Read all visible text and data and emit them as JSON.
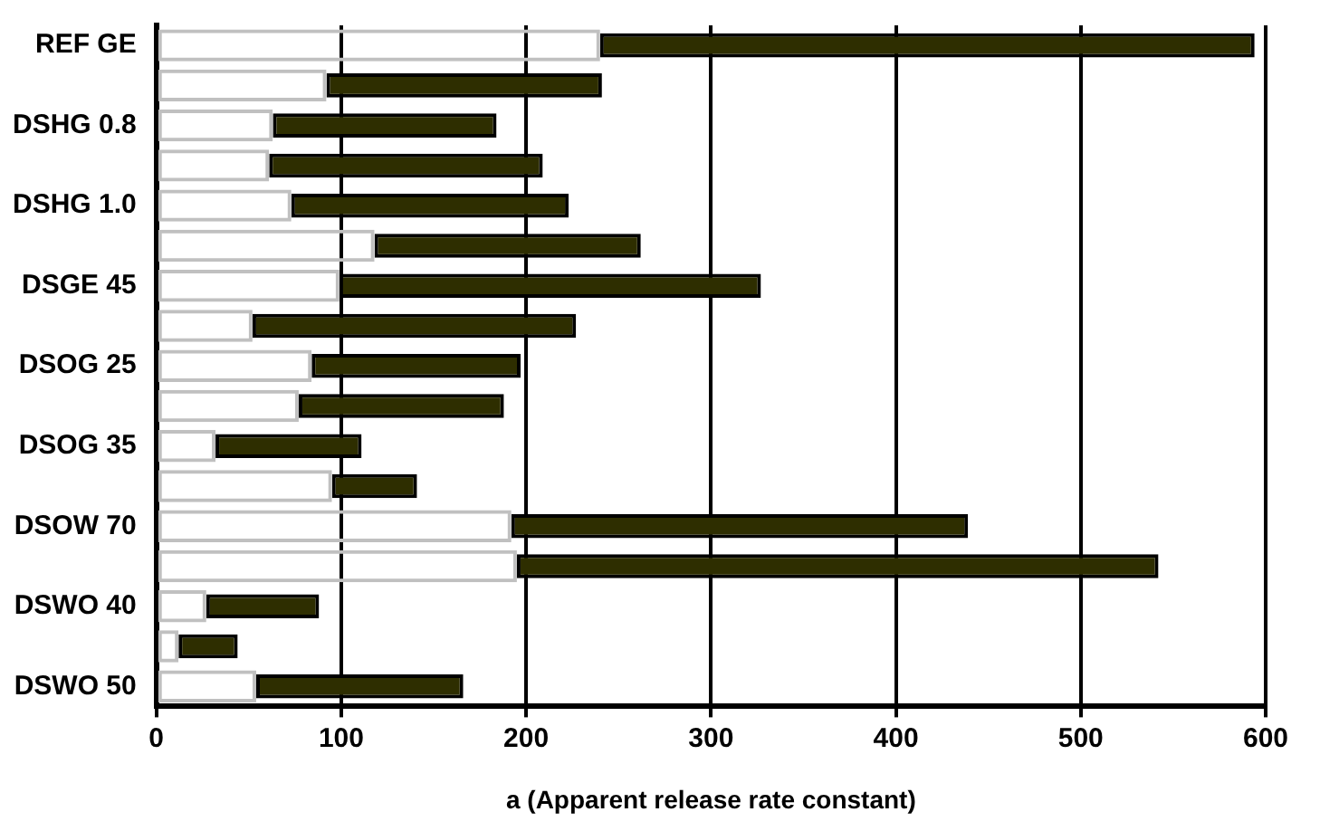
{
  "chart_data": {
    "type": "bar",
    "orientation": "horizontal",
    "stacked": true,
    "xlabel": "a (Apparent release rate constant)",
    "categories": [
      "REF GE",
      null,
      "DSHG 0.8",
      null,
      "DSHG 1.0",
      null,
      "DSGE 45",
      null,
      "DSOG 25",
      null,
      "DSOG 35",
      null,
      "DSOW 70",
      null,
      "DSWO 40",
      null,
      "DSWO 50"
    ],
    "series": [
      {
        "color": "#c0c0c0",
        "values": [
          240,
          92,
          63,
          61,
          73,
          118,
          99,
          52,
          84,
          77,
          32,
          95,
          192,
          195,
          27,
          12,
          54
        ]
      },
      {
        "color": "#2e2e00",
        "values": [
          354,
          149,
          121,
          148,
          150,
          144,
          228,
          175,
          113,
          111,
          79,
          46,
          247,
          347,
          61,
          32,
          112
        ]
      }
    ],
    "xlim": [
      0,
      600
    ],
    "xticks": [
      0,
      100,
      200,
      300,
      400,
      500,
      600
    ],
    "grid": "x",
    "legend": false
  }
}
